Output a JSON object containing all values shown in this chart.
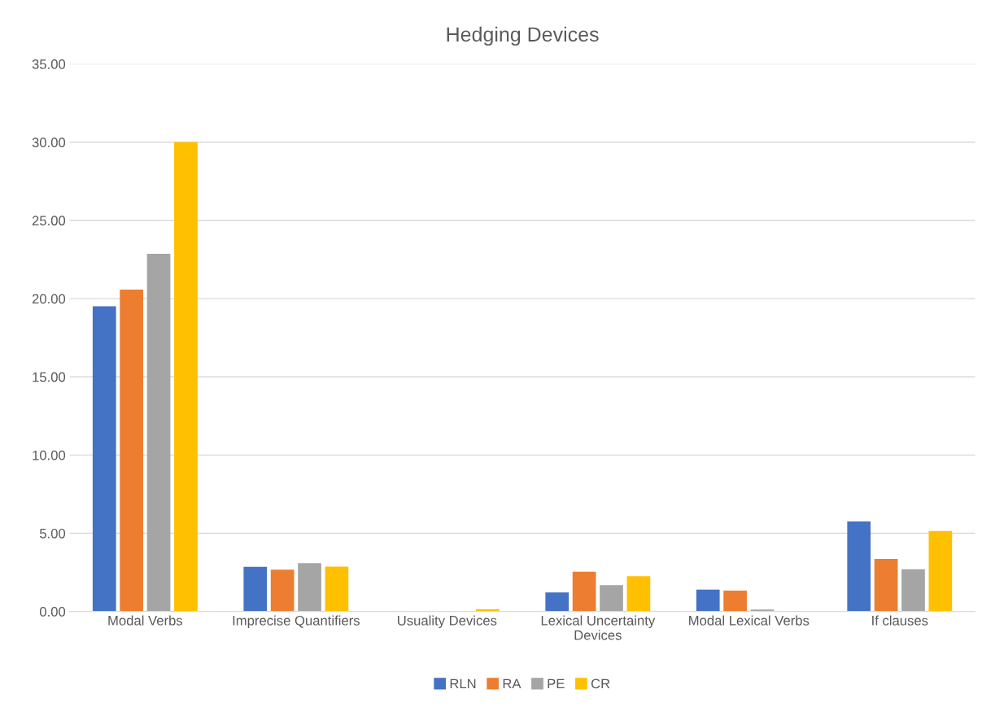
{
  "chart_data": {
    "type": "bar",
    "title": "Hedging Devices",
    "categories": [
      "Modal Verbs",
      "Imprecise Quantifiers",
      "Usuality Devices",
      "Lexical Uncertainty\nDevices",
      "Modal Lexical Verbs",
      "If clauses"
    ],
    "series": [
      {
        "name": "RLN",
        "color": "#4472c4",
        "values": [
          19.51,
          2.85,
          null,
          1.22,
          1.4,
          5.76
        ]
      },
      {
        "name": "RA",
        "color": "#ed7d31",
        "values": [
          20.58,
          2.67,
          null,
          2.54,
          1.33,
          3.36
        ]
      },
      {
        "name": "PE",
        "color": "#a5a5a5",
        "values": [
          22.86,
          3.09,
          null,
          1.69,
          0.12,
          2.7
        ]
      },
      {
        "name": "CR",
        "color": "#ffc000",
        "values": [
          30.0,
          2.87,
          0.14,
          2.26,
          null,
          5.14
        ]
      }
    ],
    "ylim": [
      0,
      35
    ],
    "yticks": [
      {
        "value": 0,
        "label": "0.00"
      },
      {
        "value": 5,
        "label": "5.00"
      },
      {
        "value": 10,
        "label": "10.00"
      },
      {
        "value": 15,
        "label": "15.00"
      },
      {
        "value": 20,
        "label": "20.00"
      },
      {
        "value": 25,
        "label": "25.00"
      },
      {
        "value": 30,
        "label": "30.00"
      },
      {
        "value": 35,
        "label": "35.00"
      }
    ],
    "grid": "y",
    "legend": "bottom"
  }
}
